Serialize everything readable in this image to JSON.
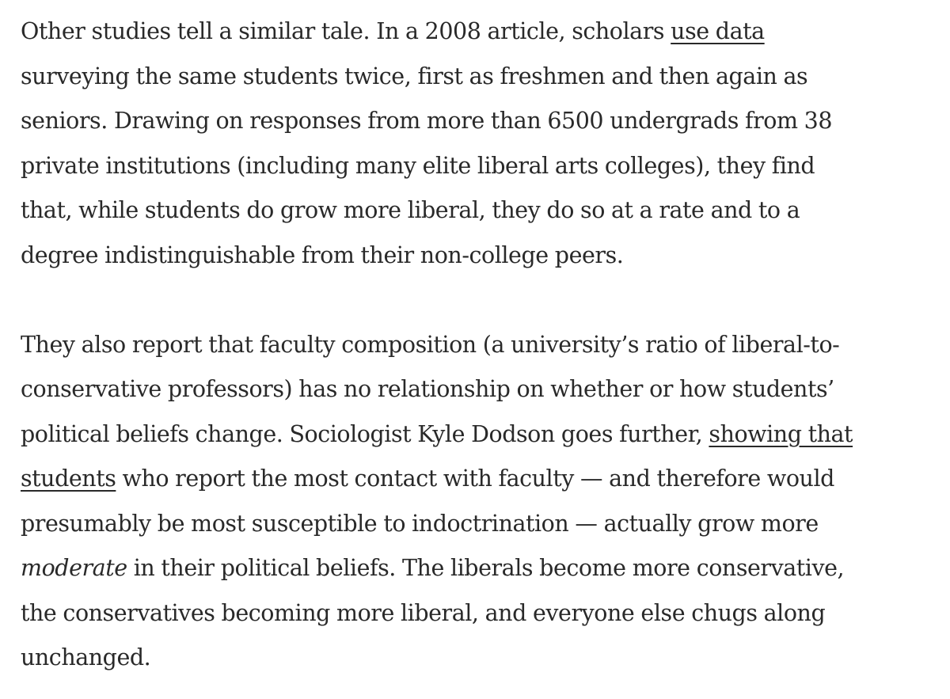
{
  "article": {
    "paragraph_1": {
      "line_1_a": "Other studies tell a similar tale. In a 2008 article, scholars ",
      "link_use_data": "use data",
      "line_2": "surveying the same students twice, first as freshmen and then again as",
      "line_3": "seniors. Drawing on responses from more than 6500 undergrads from 38",
      "line_4": "private institutions (including many elite liberal arts colleges), they find",
      "line_5": "that, while students do grow more liberal, they do so at a rate and to a",
      "line_6": "degree indistinguishable from their non-college peers."
    },
    "paragraph_2": {
      "line_1": "They also report that faculty composition (a university’s ratio of liberal-to-",
      "line_2": "conservative professors) has no relationship on whether or how students’",
      "line_3_a": "political beliefs change. Sociologist Kyle Dodson goes further, ",
      "link_showing_that_part_1": "showing that",
      "link_showing_that_part_2": "students",
      "line_4_b": " who report the most contact with faculty — and therefore would",
      "line_5": "presumably be most susceptible to indoctrination — actually grow more",
      "line_6_em": "moderate",
      "line_6_b": " in their political beliefs. The liberals become more conservative,",
      "line_7": "the conservatives becoming more liberal, and everyone else chugs along",
      "line_8": "unchanged."
    }
  }
}
